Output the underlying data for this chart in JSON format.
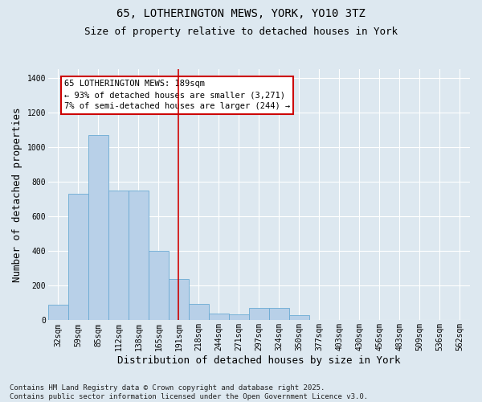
{
  "title1": "65, LOTHERINGTON MEWS, YORK, YO10 3TZ",
  "title2": "Size of property relative to detached houses in York",
  "xlabel": "Distribution of detached houses by size in York",
  "ylabel": "Number of detached properties",
  "categories": [
    "32sqm",
    "59sqm",
    "85sqm",
    "112sqm",
    "138sqm",
    "165sqm",
    "191sqm",
    "218sqm",
    "244sqm",
    "271sqm",
    "297sqm",
    "324sqm",
    "350sqm",
    "377sqm",
    "403sqm",
    "430sqm",
    "456sqm",
    "483sqm",
    "509sqm",
    "536sqm",
    "562sqm"
  ],
  "values": [
    90,
    730,
    1070,
    750,
    750,
    400,
    240,
    95,
    40,
    35,
    70,
    70,
    30,
    0,
    0,
    0,
    0,
    0,
    0,
    0,
    0
  ],
  "bar_color": "#b8d0e8",
  "bar_edge_color": "#6aaad4",
  "vline_x_index": 6,
  "annotation_text": "65 LOTHERINGTON MEWS: 189sqm\n← 93% of detached houses are smaller (3,271)\n7% of semi-detached houses are larger (244) →",
  "annotation_box_color": "#ffffff",
  "annotation_box_edge_color": "#cc0000",
  "ylim": [
    0,
    1450
  ],
  "yticks": [
    0,
    200,
    400,
    600,
    800,
    1000,
    1200,
    1400
  ],
  "footnote": "Contains HM Land Registry data © Crown copyright and database right 2025.\nContains public sector information licensed under the Open Government Licence v3.0.",
  "bg_color": "#dde8f0",
  "plot_bg_color": "#dde8f0",
  "grid_color": "#ffffff",
  "vline_color": "#cc0000",
  "title_fontsize": 10,
  "subtitle_fontsize": 9,
  "tick_fontsize": 7,
  "label_fontsize": 9,
  "footnote_fontsize": 6.5
}
